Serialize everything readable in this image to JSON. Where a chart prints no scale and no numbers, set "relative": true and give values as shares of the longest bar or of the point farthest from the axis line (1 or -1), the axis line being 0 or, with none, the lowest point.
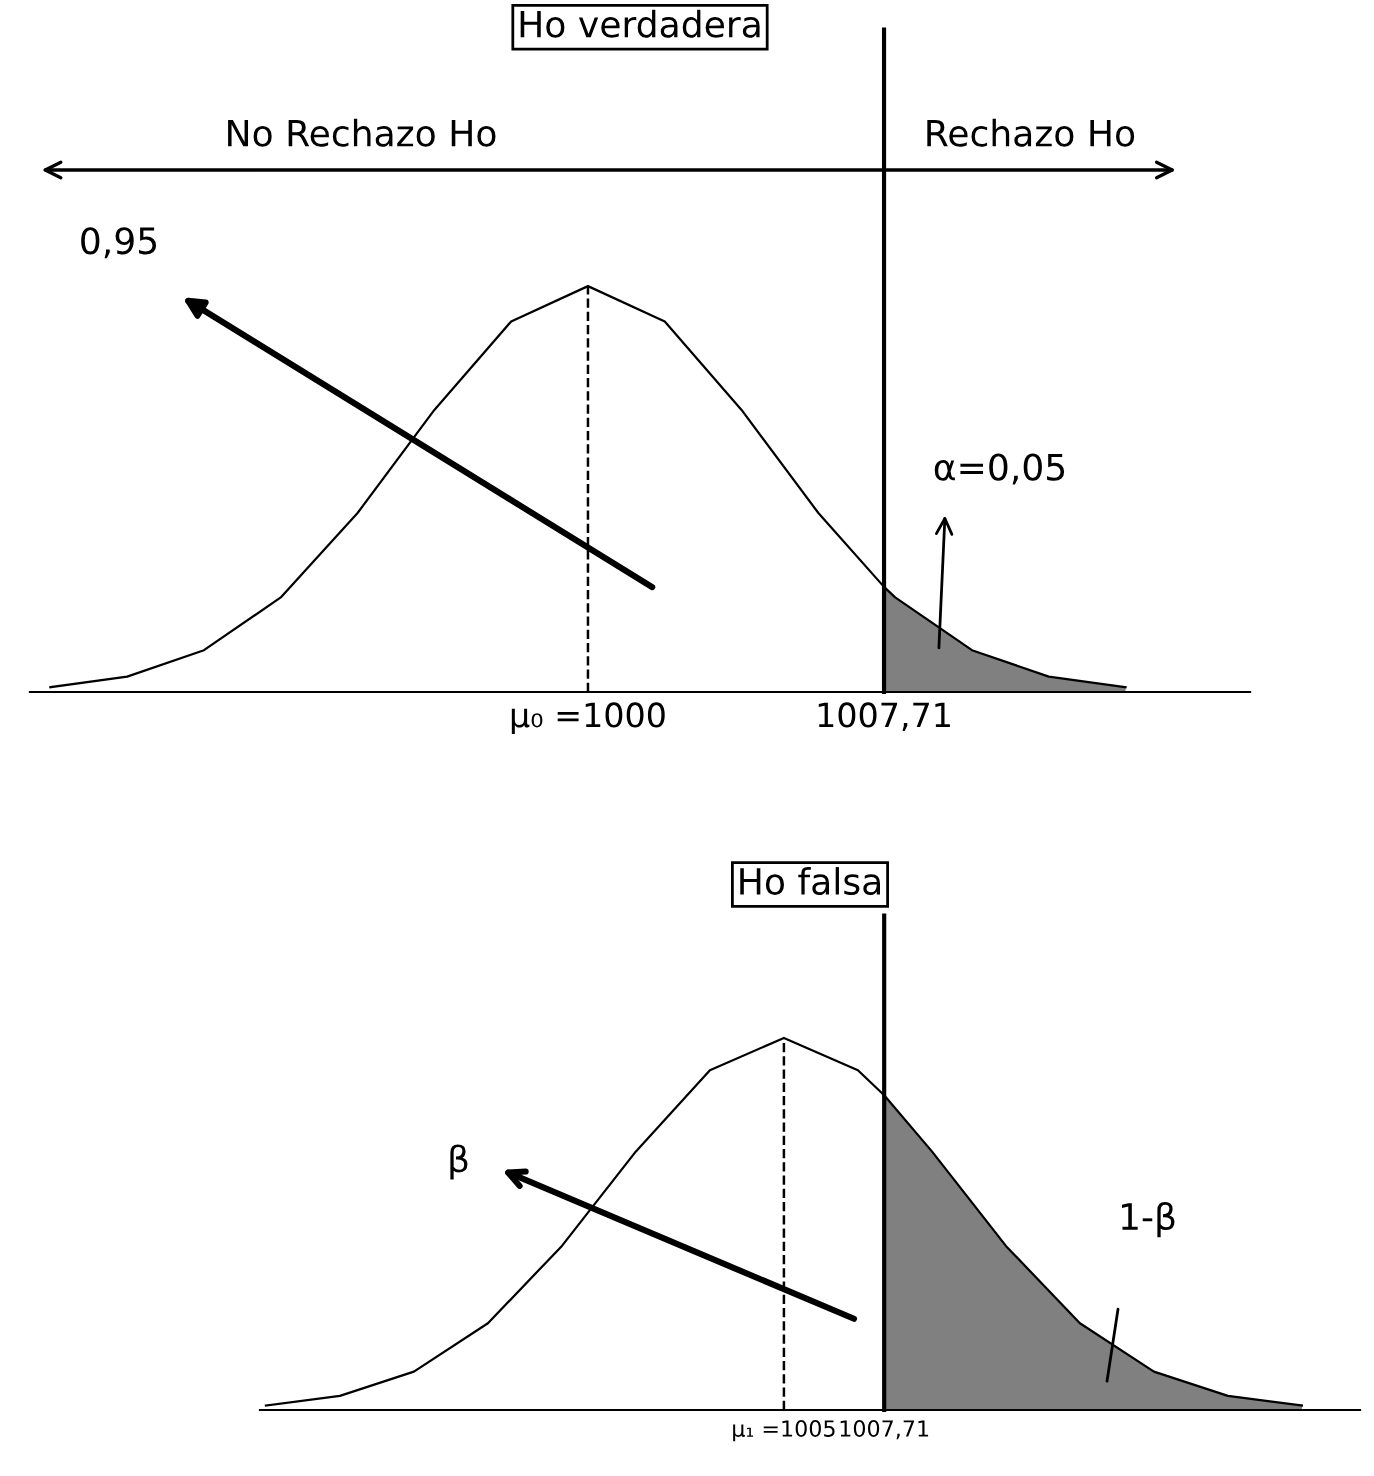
{
  "chart_data": [
    {
      "type": "line",
      "relative": true,
      "tick_labels": "x",
      "title": "Ho verdadera",
      "grid": false,
      "legend": false,
      "xlim": [
        985.47,
        1017.24
      ],
      "xticks": [
        {
          "value": 1000,
          "label": "μ₀ =1000"
        },
        {
          "value": 1007.71,
          "label": "1007,71"
        }
      ],
      "series": [
        {
          "color": "#000000",
          "x": [
            986,
            988,
            990,
            992,
            994,
            996,
            998,
            1000,
            1002,
            1004,
            1006,
            1007.71,
            1008,
            1010,
            1012,
            1014
          ],
          "values": [
            0.012,
            0.038,
            0.103,
            0.233,
            0.441,
            0.695,
            0.913,
            1,
            0.913,
            0.695,
            0.441,
            0.259,
            0.233,
            0.103,
            0.038,
            0.012
          ]
        },
        {
          "type": "area",
          "color": "#808080",
          "x": [
            1007.71,
            1008,
            1010,
            1012,
            1014
          ],
          "values": [
            0.259,
            0.233,
            0.103,
            0.038,
            0.012
          ]
        }
      ],
      "ref_lines": [
        {
          "axis": "x",
          "value": 1000,
          "line_style": "dashed"
        },
        {
          "axis": "x",
          "value": 1007.71,
          "line_style": "solid"
        }
      ],
      "annotations": [
        "No Rechazo Ho",
        "Rechazo Ho",
        "0,95",
        "α=0,05"
      ]
    },
    {
      "type": "line",
      "relative": true,
      "tick_labels": "x",
      "title": "Ho falsa",
      "grid": false,
      "legend": false,
      "xlim": [
        990.84,
        1020.57
      ],
      "xticks": [
        {
          "value": 1005,
          "label": "μ₁ =1005"
        },
        {
          "value": 1007.71,
          "label": "1007,71"
        }
      ],
      "series": [
        {
          "color": "#000000",
          "x": [
            991,
            993,
            995,
            997,
            999,
            1001,
            1003,
            1005,
            1007,
            1007.71,
            1009,
            1011,
            1013,
            1015,
            1017,
            1019
          ],
          "values": [
            0.012,
            0.038,
            0.103,
            0.233,
            0.441,
            0.695,
            0.913,
            1,
            0.913,
            0.846,
            0.695,
            0.441,
            0.233,
            0.103,
            0.038,
            0.012
          ]
        },
        {
          "type": "area",
          "color": "#808080",
          "x": [
            1007.71,
            1009,
            1011,
            1013,
            1015,
            1017,
            1019
          ],
          "values": [
            0.846,
            0.695,
            0.441,
            0.233,
            0.103,
            0.038,
            0.012
          ]
        }
      ],
      "ref_lines": [
        {
          "axis": "x",
          "value": 1005,
          "line_style": "dashed"
        },
        {
          "axis": "x",
          "value": 1007.71,
          "line_style": "solid"
        }
      ],
      "annotations": [
        "β",
        "1-β"
      ]
    }
  ]
}
